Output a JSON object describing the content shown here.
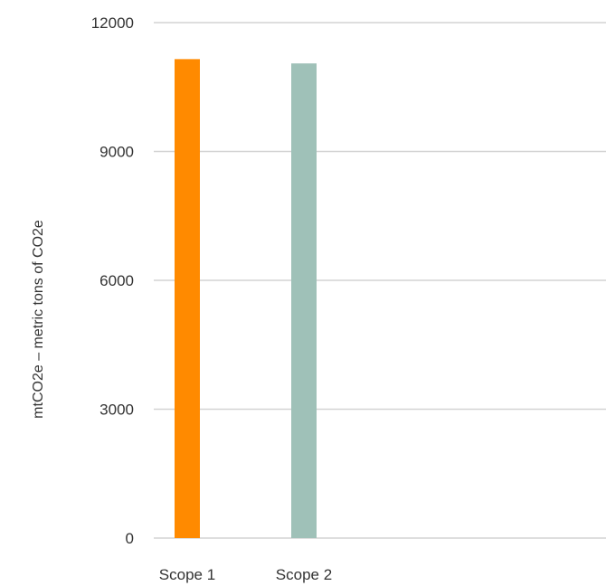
{
  "chart_data": {
    "type": "bar",
    "categories": [
      "Scope 1",
      "Scope 2"
    ],
    "values": [
      11150,
      11050
    ],
    "colors": [
      "#ff8a00",
      "#9fc1b8"
    ],
    "title": "",
    "xlabel": "",
    "ylabel": "mtCO2e – metric tons of CO2e",
    "ylim": [
      0,
      12000
    ],
    "yticks": [
      0,
      3000,
      6000,
      9000,
      12000
    ],
    "ytick_labels": [
      "0",
      "3000",
      "6000",
      "9000",
      "12000"
    ],
    "grid": true,
    "legend": "none"
  }
}
